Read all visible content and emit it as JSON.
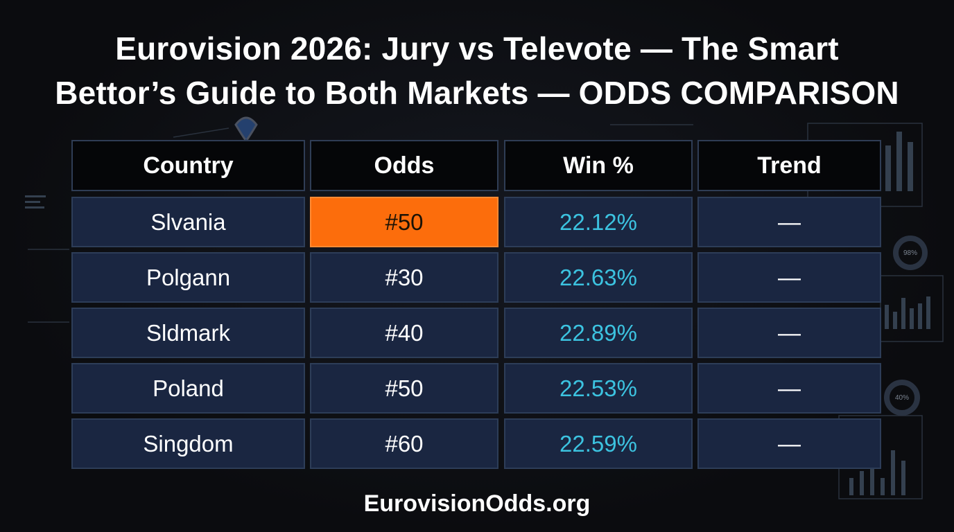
{
  "title_lines": [
    "Eurovision 2026: Jury vs Televote — The Smart",
    "Bettor’s Guide to Both Markets — ODDS COMPARISON"
  ],
  "footer": "EurovisionOdds.org",
  "decor": {
    "ring_top": "98%",
    "ring_bottom": "40%"
  },
  "colors": {
    "background": "#0b0c0f",
    "cell": "#1a2641",
    "highlight": "#fc6d0c",
    "win_text": "#3cc3e0"
  },
  "chart_data": {
    "type": "table",
    "columns": [
      "Country",
      "Odds",
      "Win %",
      "Trend"
    ],
    "rows": [
      [
        "Slvania",
        "#50",
        "22.12%",
        "—"
      ],
      [
        "Polgann",
        "#30",
        "22.63%",
        "—"
      ],
      [
        "Sldmark",
        "#40",
        "22.89%",
        "—"
      ],
      [
        "Poland",
        "#50",
        "22.53%",
        "—"
      ],
      [
        "Singdom",
        "#60",
        "22.59%",
        "—"
      ]
    ],
    "highlighted_cell": {
      "row": 0,
      "column": 1
    }
  }
}
